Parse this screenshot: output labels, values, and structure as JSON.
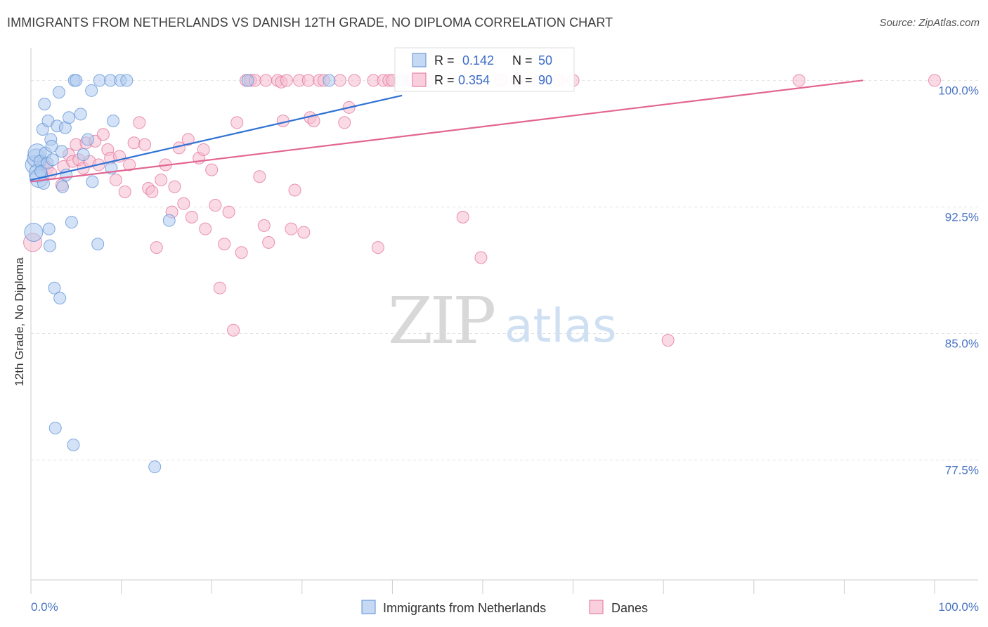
{
  "header": {
    "title": "IMMIGRANTS FROM NETHERLANDS VS DANISH 12TH GRADE, NO DIPLOMA CORRELATION CHART",
    "source": "Source: ZipAtlas.com"
  },
  "watermark": {
    "zip": "ZIP",
    "atlas": "atlas"
  },
  "stats": [
    {
      "r_label": "R =",
      "r_value": "0.142",
      "n_label": "N =",
      "n_value": "50"
    },
    {
      "r_label": "R =",
      "r_value": "0.354",
      "n_label": "N =",
      "n_value": "90"
    }
  ],
  "chart_data": {
    "type": "scatter",
    "title": "IMMIGRANTS FROM NETHERLANDS VS DANISH 12TH GRADE, NO DIPLOMA CORRELATION CHART",
    "xlabel": "",
    "ylabel": "12th Grade, No Diploma",
    "xlim": [
      0,
      100
    ],
    "ylim": [
      70.4,
      101.6
    ],
    "x_tick_labels": [
      "0.0%",
      "100.0%"
    ],
    "y_ticks": [
      100.0,
      92.5,
      85.0,
      77.5
    ],
    "y_tick_labels": [
      "100.0%",
      "92.5%",
      "85.0%",
      "77.5%"
    ],
    "grid": "horizontal dashed",
    "legend_position": "bottom-center",
    "colors": {
      "blue": "#5b8fd6",
      "blue_fill": "#aecbef",
      "pink": "#e36f9b",
      "pink_fill": "#f5bdd0"
    },
    "series": [
      {
        "name": "Immigrants from Netherlands",
        "color": "#5b8fd6",
        "trend": {
          "x": [
            0,
            41
          ],
          "y": [
            94.1,
            99.1
          ]
        },
        "points": [
          {
            "x": 0.3,
            "y": 91.0
          },
          {
            "x": 0.4,
            "y": 95.0
          },
          {
            "x": 0.6,
            "y": 95.4
          },
          {
            "x": 0.7,
            "y": 95.7
          },
          {
            "x": 0.8,
            "y": 94.5
          },
          {
            "x": 0.9,
            "y": 94.2
          },
          {
            "x": 1.0,
            "y": 95.2
          },
          {
            "x": 1.1,
            "y": 94.6
          },
          {
            "x": 1.3,
            "y": 97.1
          },
          {
            "x": 1.4,
            "y": 93.9
          },
          {
            "x": 1.5,
            "y": 98.6
          },
          {
            "x": 1.6,
            "y": 95.7
          },
          {
            "x": 1.8,
            "y": 95.1
          },
          {
            "x": 1.9,
            "y": 97.6
          },
          {
            "x": 2.0,
            "y": 91.2
          },
          {
            "x": 2.1,
            "y": 90.2
          },
          {
            "x": 2.2,
            "y": 96.5
          },
          {
            "x": 2.3,
            "y": 96.1
          },
          {
            "x": 2.4,
            "y": 95.3
          },
          {
            "x": 2.6,
            "y": 87.7
          },
          {
            "x": 2.7,
            "y": 79.4
          },
          {
            "x": 2.9,
            "y": 97.3
          },
          {
            "x": 3.1,
            "y": 99.3
          },
          {
            "x": 3.2,
            "y": 87.1
          },
          {
            "x": 3.4,
            "y": 95.8
          },
          {
            "x": 3.5,
            "y": 93.7
          },
          {
            "x": 3.8,
            "y": 97.2
          },
          {
            "x": 3.9,
            "y": 94.4
          },
          {
            "x": 4.2,
            "y": 97.8
          },
          {
            "x": 4.5,
            "y": 91.6
          },
          {
            "x": 4.7,
            "y": 78.4
          },
          {
            "x": 4.8,
            "y": 100.0
          },
          {
            "x": 5.0,
            "y": 100.0
          },
          {
            "x": 5.5,
            "y": 98.0
          },
          {
            "x": 5.8,
            "y": 95.6
          },
          {
            "x": 6.3,
            "y": 96.5
          },
          {
            "x": 6.7,
            "y": 99.4
          },
          {
            "x": 6.8,
            "y": 94.0
          },
          {
            "x": 7.4,
            "y": 90.3
          },
          {
            "x": 7.6,
            "y": 100.0
          },
          {
            "x": 8.8,
            "y": 100.0
          },
          {
            "x": 8.9,
            "y": 94.8
          },
          {
            "x": 9.1,
            "y": 97.6
          },
          {
            "x": 9.9,
            "y": 100.0
          },
          {
            "x": 10.6,
            "y": 100.0
          },
          {
            "x": 13.7,
            "y": 77.1
          },
          {
            "x": 15.3,
            "y": 91.7
          },
          {
            "x": 24.0,
            "y": 100.0
          },
          {
            "x": 33.0,
            "y": 100.0
          },
          {
            "x": 41.0,
            "y": 100.0
          }
        ]
      },
      {
        "name": "Danes",
        "color": "#e36f9b",
        "trend": {
          "x": [
            0,
            92
          ],
          "y": [
            94.0,
            100.0
          ]
        },
        "points": [
          {
            "x": 0.2,
            "y": 90.4
          },
          {
            "x": 1.4,
            "y": 95.1
          },
          {
            "x": 1.8,
            "y": 94.8
          },
          {
            "x": 2.2,
            "y": 94.5
          },
          {
            "x": 3.4,
            "y": 93.8
          },
          {
            "x": 3.6,
            "y": 94.9
          },
          {
            "x": 4.2,
            "y": 95.6
          },
          {
            "x": 4.6,
            "y": 95.2
          },
          {
            "x": 5.0,
            "y": 96.2
          },
          {
            "x": 5.3,
            "y": 95.3
          },
          {
            "x": 5.8,
            "y": 94.8
          },
          {
            "x": 6.1,
            "y": 96.3
          },
          {
            "x": 6.5,
            "y": 95.2
          },
          {
            "x": 7.1,
            "y": 96.4
          },
          {
            "x": 7.5,
            "y": 95.0
          },
          {
            "x": 8.0,
            "y": 96.8
          },
          {
            "x": 8.5,
            "y": 95.9
          },
          {
            "x": 8.8,
            "y": 95.4
          },
          {
            "x": 9.4,
            "y": 94.1
          },
          {
            "x": 9.8,
            "y": 95.5
          },
          {
            "x": 10.4,
            "y": 93.4
          },
          {
            "x": 10.9,
            "y": 95.0
          },
          {
            "x": 11.4,
            "y": 96.3
          },
          {
            "x": 12.0,
            "y": 97.5
          },
          {
            "x": 12.6,
            "y": 96.2
          },
          {
            "x": 13.0,
            "y": 93.6
          },
          {
            "x": 13.4,
            "y": 93.4
          },
          {
            "x": 13.9,
            "y": 90.1
          },
          {
            "x": 14.4,
            "y": 94.1
          },
          {
            "x": 14.9,
            "y": 95.0
          },
          {
            "x": 15.6,
            "y": 92.2
          },
          {
            "x": 15.9,
            "y": 93.7
          },
          {
            "x": 16.4,
            "y": 96.0
          },
          {
            "x": 16.9,
            "y": 92.7
          },
          {
            "x": 17.4,
            "y": 96.5
          },
          {
            "x": 17.8,
            "y": 91.9
          },
          {
            "x": 18.6,
            "y": 95.4
          },
          {
            "x": 19.1,
            "y": 95.9
          },
          {
            "x": 19.3,
            "y": 91.2
          },
          {
            "x": 20.0,
            "y": 94.7
          },
          {
            "x": 20.4,
            "y": 92.6
          },
          {
            "x": 20.9,
            "y": 87.7
          },
          {
            "x": 21.4,
            "y": 90.3
          },
          {
            "x": 21.9,
            "y": 92.2
          },
          {
            "x": 22.4,
            "y": 85.2
          },
          {
            "x": 22.8,
            "y": 97.5
          },
          {
            "x": 23.3,
            "y": 89.8
          },
          {
            "x": 23.8,
            "y": 100.0
          },
          {
            "x": 24.3,
            "y": 100.0
          },
          {
            "x": 24.8,
            "y": 100.0
          },
          {
            "x": 25.3,
            "y": 94.3
          },
          {
            "x": 25.8,
            "y": 91.4
          },
          {
            "x": 26.0,
            "y": 100.0
          },
          {
            "x": 26.3,
            "y": 90.4
          },
          {
            "x": 27.3,
            "y": 100.0
          },
          {
            "x": 27.7,
            "y": 99.9
          },
          {
            "x": 27.9,
            "y": 97.6
          },
          {
            "x": 28.3,
            "y": 100.0
          },
          {
            "x": 28.8,
            "y": 91.2
          },
          {
            "x": 29.2,
            "y": 93.5
          },
          {
            "x": 29.7,
            "y": 100.0
          },
          {
            "x": 30.2,
            "y": 91.0
          },
          {
            "x": 30.7,
            "y": 100.0
          },
          {
            "x": 30.9,
            "y": 97.8
          },
          {
            "x": 31.3,
            "y": 97.6
          },
          {
            "x": 31.9,
            "y": 100.0
          },
          {
            "x": 32.4,
            "y": 100.0
          },
          {
            "x": 34.2,
            "y": 100.0
          },
          {
            "x": 34.7,
            "y": 97.5
          },
          {
            "x": 35.2,
            "y": 98.4
          },
          {
            "x": 35.8,
            "y": 100.0
          },
          {
            "x": 37.9,
            "y": 100.0
          },
          {
            "x": 38.4,
            "y": 90.1
          },
          {
            "x": 39.0,
            "y": 100.0
          },
          {
            "x": 39.6,
            "y": 100.0
          },
          {
            "x": 40.0,
            "y": 100.0
          },
          {
            "x": 41.8,
            "y": 100.0
          },
          {
            "x": 42.3,
            "y": 100.0
          },
          {
            "x": 44.0,
            "y": 100.0
          },
          {
            "x": 47.8,
            "y": 91.9
          },
          {
            "x": 49.4,
            "y": 100.0
          },
          {
            "x": 49.8,
            "y": 89.5
          },
          {
            "x": 52.0,
            "y": 100.0
          },
          {
            "x": 53.8,
            "y": 100.0
          },
          {
            "x": 56.3,
            "y": 100.0
          },
          {
            "x": 58.4,
            "y": 100.0
          },
          {
            "x": 60.0,
            "y": 100.0
          },
          {
            "x": 70.5,
            "y": 84.6
          },
          {
            "x": 85.0,
            "y": 100.0
          },
          {
            "x": 100.0,
            "y": 100.0
          }
        ]
      }
    ]
  }
}
